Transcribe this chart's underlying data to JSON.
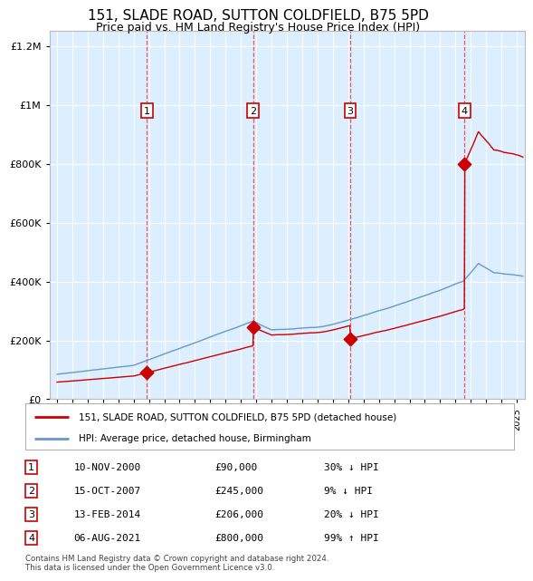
{
  "title": "151, SLADE ROAD, SUTTON COLDFIELD, B75 5PD",
  "subtitle": "Price paid vs. HM Land Registry's House Price Index (HPI)",
  "title_fontsize": 11,
  "subtitle_fontsize": 9,
  "background_color": "#ffffff",
  "plot_bg_color": "#ddeeff",
  "legend_label_red": "151, SLADE ROAD, SUTTON COLDFIELD, B75 5PD (detached house)",
  "legend_label_blue": "HPI: Average price, detached house, Birmingham",
  "footer": "Contains HM Land Registry data © Crown copyright and database right 2024.\nThis data is licensed under the Open Government Licence v3.0.",
  "sale_points": [
    {
      "num": 1,
      "date": "10-NOV-2000",
      "price": 90000,
      "pct": "30%",
      "dir": "↓",
      "x_year": 2000.86
    },
    {
      "num": 2,
      "date": "15-OCT-2007",
      "price": 245000,
      "pct": "9%",
      "dir": "↓",
      "x_year": 2007.79
    },
    {
      "num": 3,
      "date": "13-FEB-2014",
      "price": 206000,
      "pct": "20%",
      "dir": "↓",
      "x_year": 2014.12
    },
    {
      "num": 4,
      "date": "06-AUG-2021",
      "price": 800000,
      "pct": "99%",
      "dir": "↑",
      "x_year": 2021.6
    }
  ],
  "ylim": [
    0,
    1250000
  ],
  "xlim_start": 1994.5,
  "xlim_end": 2025.5,
  "red_color": "#cc0000",
  "blue_color": "#6699cc",
  "dashed_color": "#ee4444",
  "table_rows": [
    [
      "1",
      "10-NOV-2000",
      "£90,000",
      "30% ↓ HPI"
    ],
    [
      "2",
      "15-OCT-2007",
      "£245,000",
      "9% ↓ HPI"
    ],
    [
      "3",
      "13-FEB-2014",
      "£206,000",
      "20% ↓ HPI"
    ],
    [
      "4",
      "06-AUG-2021",
      "£800,000",
      "99% ↑ HPI"
    ]
  ]
}
